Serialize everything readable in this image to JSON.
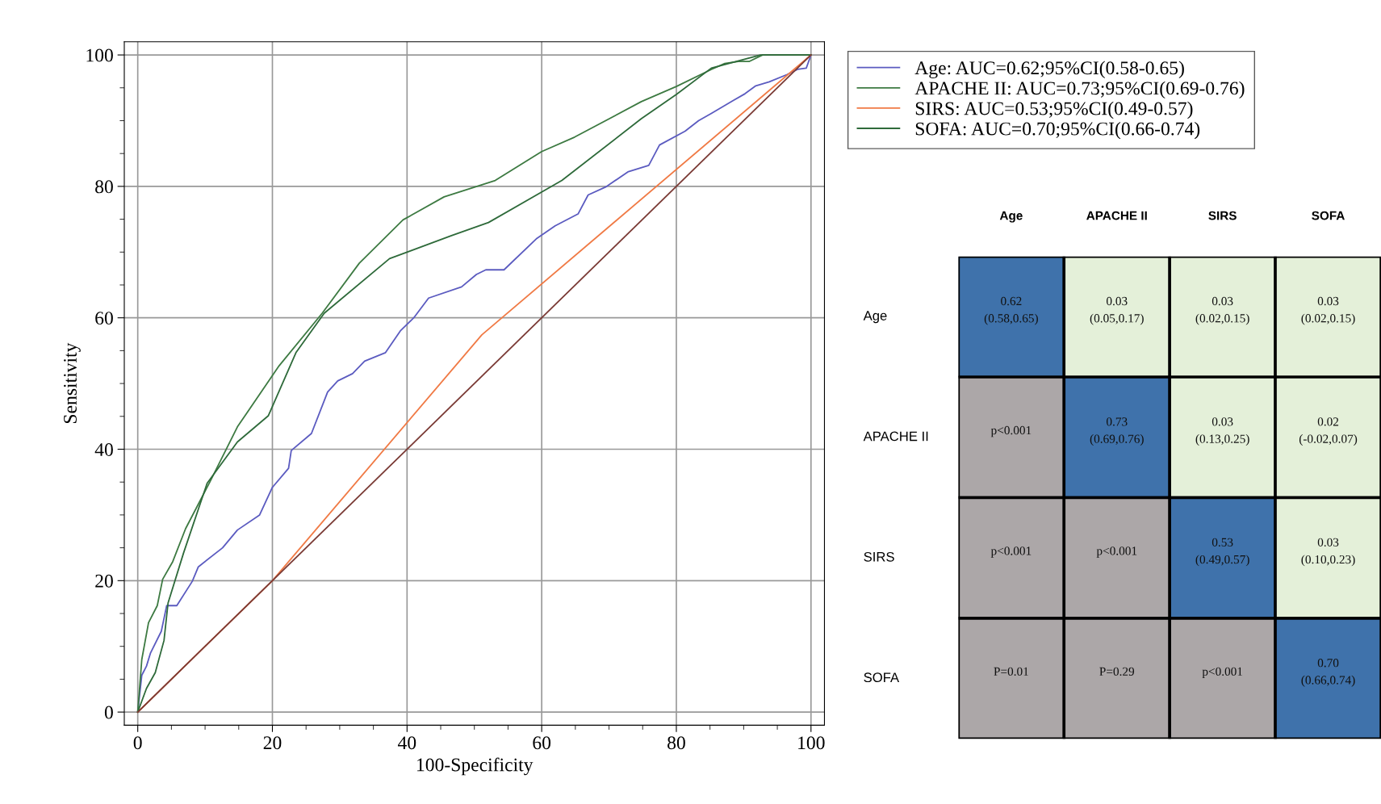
{
  "chart_data": [
    {
      "type": "line",
      "xlabel": "100-Specificity",
      "ylabel": "Sensitivity",
      "xlim": [
        -2,
        102
      ],
      "ylim": [
        -2,
        102
      ],
      "xticks": [
        0,
        20,
        40,
        60,
        80,
        100
      ],
      "yticks": [
        0,
        20,
        40,
        60,
        80,
        100
      ],
      "grid": true,
      "legend": "right",
      "series": [
        {
          "name": "Age: AUC=0.62;95%CI(0.58-0.65)",
          "color": "#5b5bc0",
          "x": [
            0,
            0.6,
            1.3,
            1.9,
            3.5,
            4.3,
            5.8,
            8.1,
            9,
            12.6,
            14.8,
            18.1,
            20,
            22.4,
            22.8,
            25.8,
            28.2,
            29.7,
            31.9,
            33.7,
            36.8,
            39,
            41,
            43.2,
            48.1,
            50.3,
            51.7,
            54.4,
            59.3,
            62,
            65.4,
            66.9,
            69.5,
            72.8,
            75.9,
            77.5,
            81.3,
            83.3,
            85.2,
            88.5,
            90.2,
            91.8,
            93.8,
            96.4,
            98,
            99.3,
            100
          ],
          "values": [
            0,
            5.6,
            7,
            9,
            12.3,
            16.2,
            16.2,
            19.9,
            22.1,
            25,
            27.7,
            30,
            34.2,
            37.1,
            39.8,
            42.4,
            48.7,
            50.4,
            51.5,
            53.4,
            54.7,
            58,
            60,
            63,
            64.7,
            66.6,
            67.3,
            67.3,
            72.1,
            74,
            75.8,
            78.7,
            79.9,
            82.2,
            83.2,
            86.3,
            88.4,
            90,
            91.1,
            93.1,
            94.1,
            95.3,
            95.9,
            97,
            97.8,
            98,
            100
          ]
        },
        {
          "name": "APACHE II: AUC=0.73;95%CI(0.69-0.76)",
          "color": "#3d7a42",
          "x": [
            0,
            0.6,
            1.6,
            2.9,
            3.7,
            5.2,
            7.1,
            10.6,
            14.8,
            21,
            27.4,
            32.9,
            39.4,
            45.5,
            53.1,
            60,
            64.9,
            74.8,
            80,
            85.2,
            87.2,
            89.2,
            90.8,
            92.8,
            100
          ],
          "values": [
            0,
            8,
            13.6,
            16.2,
            20.2,
            22.9,
            27.9,
            34.8,
            43.4,
            52.7,
            60.7,
            68.3,
            74.9,
            78.4,
            80.9,
            85.3,
            87.5,
            92.9,
            95.2,
            97.8,
            98.7,
            99,
            99,
            100,
            100
          ]
        },
        {
          "name": "SIRS: AUC=0.53;95%CI(0.49-0.57)",
          "color": "#f07a45",
          "x": [
            0,
            20,
            51.1,
            100
          ],
          "values": [
            0,
            20,
            57.4,
            100
          ]
        },
        {
          "name": "SOFA: AUC=0.70;95%CI(0.66-0.74)",
          "color": "#2e6a3a",
          "x": [
            0,
            1.3,
            2.6,
            3.9,
            4.5,
            6.8,
            10.3,
            14.8,
            19.4,
            23.5,
            27.7,
            37.4,
            46.6,
            52.1,
            63,
            74.8,
            80,
            85.2,
            92.5,
            100
          ],
          "values": [
            0,
            3.6,
            6,
            10.9,
            16.6,
            24.2,
            34.8,
            41.1,
            45.1,
            54.7,
            60.7,
            69,
            72.5,
            74.5,
            80.9,
            90.3,
            94,
            98,
            100,
            100
          ]
        },
        {
          "color": "#7a3a35",
          "x": [
            0,
            100
          ],
          "values": [
            0,
            100
          ]
        }
      ]
    },
    {
      "type": "other",
      "categories": [
        "Age",
        "APACHE II",
        "SIRS",
        "SOFA"
      ],
      "y_categories": [
        "Age",
        "APACHE II",
        "SIRS",
        "SOFA"
      ],
      "cell_labels": [
        [
          "0.62\n(0.58,0.65)",
          "0.03\n(0.05,0.17)",
          "0.03\n(0.02,0.15)",
          "0.03\n(0.02,0.15)"
        ],
        [
          "p<0.001",
          "0.73\n(0.69,0.76)",
          "0.03\n(0.13,0.25)",
          "0.02\n(-0.02,0.07)"
        ],
        [
          "p<0.001",
          "p<0.001",
          "0.53\n(0.49,0.57)",
          "0.03\n(0.10,0.23)"
        ],
        [
          "P=0.01",
          "P=0.29",
          "p<0.001",
          "0.70\n(0.66,0.74)"
        ]
      ],
      "colors": [
        [
          "#3f72ab",
          "#e4f0d9",
          "#e4f0d9",
          "#e4f0d9"
        ],
        [
          "#aca7a8",
          "#3f72ab",
          "#e4f0d9",
          "#e4f0d9"
        ],
        [
          "#aca7a8",
          "#aca7a8",
          "#3f72ab",
          "#e4f0d9"
        ],
        [
          "#aca7a8",
          "#aca7a8",
          "#aca7a8",
          "#3f72ab"
        ]
      ]
    }
  ]
}
